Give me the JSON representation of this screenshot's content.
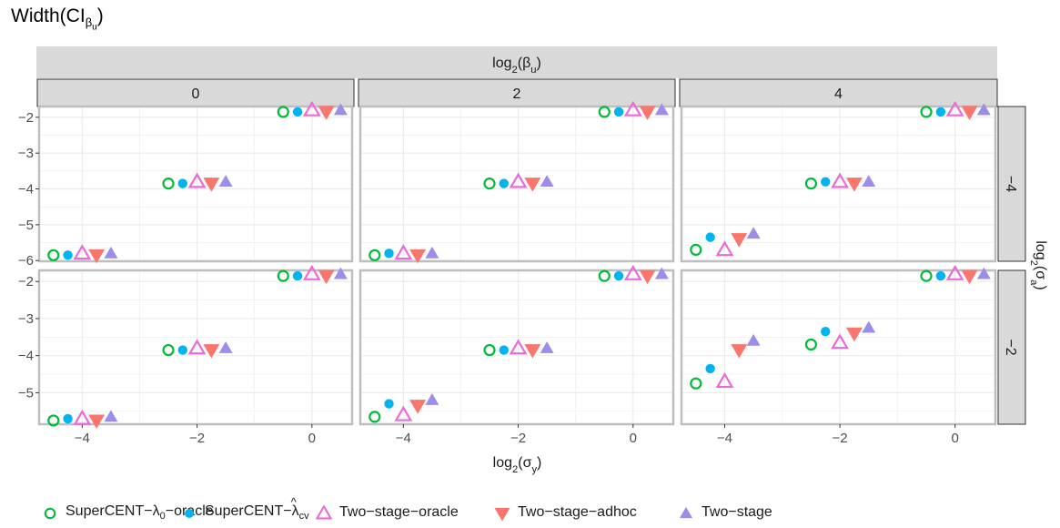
{
  "title": {
    "main": "Width(CI",
    "sub": "β",
    "subsub": "u",
    "close": ")"
  },
  "strip_top": {
    "text": "log",
    "sub": "2",
    "rest": "(β",
    "sub2": "u",
    "close": ")"
  },
  "strip_right": {
    "text": "log",
    "sub": "2",
    "rest": "(σ",
    "sub2": "a",
    "close": ")"
  },
  "xaxis_title": {
    "text": "log",
    "sub": "2",
    "rest": "(σ",
    "sub2": "y",
    "close": ")"
  },
  "columns": [
    "0",
    "2",
    "4"
  ],
  "rows": [
    "−4",
    "−2"
  ],
  "colors": {
    "SuperCENT-lambda0-oracle": "#00ba38",
    "SuperCENT-lambda-cv": "#00b4ef",
    "Two-stage-oracle": "#e96bd8",
    "Two-stage-adhoc": "#f8766d",
    "Two-stage": "#9c8ee8",
    "strip_bg": "#d9d9d9",
    "grid": "#ebebeb",
    "panel_border": "#bebebe"
  },
  "legend": [
    {
      "key": "SuperCENT-lambda0-oracle",
      "label": "SuperCENT−λ",
      "sub": "0",
      "rest": "−oracle",
      "shape": "open-circle"
    },
    {
      "key": "SuperCENT-lambda-cv",
      "label": "SuperCENT−",
      "hat": "λ",
      "sub": "cv",
      "rest": "",
      "shape": "filled-circle"
    },
    {
      "key": "Two-stage-oracle",
      "label": "Two−stage−oracle",
      "shape": "open-triangle-up"
    },
    {
      "key": "Two-stage-adhoc",
      "label": "Two−stage−adhoc",
      "shape": "filled-triangle-down"
    },
    {
      "key": "Two-stage",
      "label": "Two−stage",
      "shape": "filled-triangle-up"
    }
  ],
  "chart_data": {
    "type": "scatter",
    "title": "Width(CIβu)",
    "xlabel": "log2(σy)",
    "ylabel": "",
    "facet_col_label": "log2(βu)",
    "facet_row_label": "log2(σa)",
    "x_ticks": [
      "−4",
      "−2",
      "0"
    ],
    "x_tick_values": [
      -4,
      -2,
      0
    ],
    "xlim": [
      -4.75,
      0.7
    ],
    "rows": [
      {
        "ylim": [
          -6.02,
          -1.7
        ],
        "y_ticks": [
          "−2",
          "−3",
          "−4",
          "−5",
          "−6"
        ],
        "y_tick_values": [
          -2,
          -3,
          -4,
          -5,
          -6
        ]
      },
      {
        "ylim": [
          -5.85,
          -1.7
        ],
        "y_ticks": [
          "−2",
          "−3",
          "−4",
          "−5"
        ],
        "y_tick_values": [
          -2,
          -3,
          -4,
          -5
        ]
      }
    ],
    "x_positions": [
      -4,
      -2,
      0
    ],
    "series_keys": [
      "SuperCENT-lambda0-oracle",
      "SuperCENT-lambda-cv",
      "Two-stage-oracle",
      "Two-stage-adhoc",
      "Two-stage"
    ],
    "dodge": [
      -0.5,
      -0.25,
      0,
      0.25,
      0.5
    ],
    "panels": [
      {
        "row": 0,
        "col": 0,
        "values": [
          [
            -5.85,
            -5.85,
            -5.8,
            -5.85,
            -5.8
          ],
          [
            -3.85,
            -3.85,
            -3.8,
            -3.85,
            -3.8
          ],
          [
            -1.85,
            -1.85,
            -1.8,
            -1.85,
            -1.8
          ]
        ]
      },
      {
        "row": 0,
        "col": 1,
        "values": [
          [
            -5.85,
            -5.8,
            -5.8,
            -5.85,
            -5.8
          ],
          [
            -3.85,
            -3.85,
            -3.8,
            -3.85,
            -3.8
          ],
          [
            -1.85,
            -1.85,
            -1.8,
            -1.85,
            -1.8
          ]
        ]
      },
      {
        "row": 0,
        "col": 2,
        "values": [
          [
            -5.7,
            -5.35,
            -5.7,
            -5.4,
            -5.25
          ],
          [
            -3.85,
            -3.8,
            -3.8,
            -3.85,
            -3.8
          ],
          [
            -1.85,
            -1.85,
            -1.8,
            -1.85,
            -1.8
          ]
        ]
      },
      {
        "row": 1,
        "col": 0,
        "values": [
          [
            -5.75,
            -5.7,
            -5.7,
            -5.75,
            -5.65
          ],
          [
            -3.85,
            -3.85,
            -3.8,
            -3.85,
            -3.8
          ],
          [
            -1.85,
            -1.85,
            -1.8,
            -1.85,
            -1.8
          ]
        ]
      },
      {
        "row": 1,
        "col": 1,
        "values": [
          [
            -5.65,
            -5.3,
            -5.6,
            -5.35,
            -5.2
          ],
          [
            -3.85,
            -3.85,
            -3.8,
            -3.85,
            -3.8
          ],
          [
            -1.85,
            -1.85,
            -1.8,
            -1.85,
            -1.8
          ]
        ]
      },
      {
        "row": 1,
        "col": 2,
        "values": [
          [
            -4.75,
            -4.35,
            -4.7,
            -3.85,
            -3.6
          ],
          [
            -3.7,
            -3.35,
            -3.65,
            -3.4,
            -3.25
          ],
          [
            -1.85,
            -1.85,
            -1.8,
            -1.85,
            -1.8
          ]
        ]
      }
    ]
  }
}
